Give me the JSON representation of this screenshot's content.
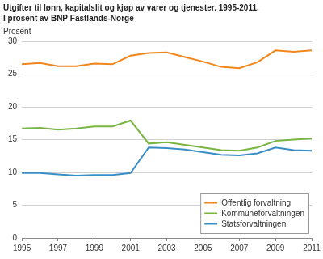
{
  "chart_data": {
    "type": "line",
    "title": "Utgifter til lønn, kapitalslit og kjøp av varer og tjenester. 1995-2011.",
    "subtitle": "I prosent av BNP Fastlands-Norge",
    "y_label": "Prosent",
    "x": [
      1995,
      1996,
      1997,
      1998,
      1999,
      2000,
      2001,
      2002,
      2003,
      2004,
      2005,
      2006,
      2007,
      2008,
      2009,
      2010,
      2011
    ],
    "series": [
      {
        "name": "Offentlig forvaltning",
        "color": "#f0861c",
        "values": [
          26.5,
          26.7,
          26.2,
          26.2,
          26.6,
          26.5,
          27.8,
          28.2,
          28.3,
          27.6,
          26.9,
          26.1,
          25.9,
          26.8,
          28.6,
          28.4,
          28.6
        ]
      },
      {
        "name": "Kommuneforvaltningen",
        "color": "#79b540",
        "values": [
          16.7,
          16.8,
          16.5,
          16.7,
          17.0,
          17.0,
          17.9,
          14.4,
          14.6,
          14.2,
          13.8,
          13.4,
          13.3,
          13.8,
          14.8,
          15.0,
          15.2
        ]
      },
      {
        "name": "Statsforvaltningen",
        "color": "#3a8ec6",
        "values": [
          9.9,
          9.9,
          9.7,
          9.5,
          9.6,
          9.6,
          9.9,
          13.8,
          13.7,
          13.5,
          13.1,
          12.7,
          12.6,
          12.9,
          13.8,
          13.4,
          13.3
        ]
      }
    ],
    "xlim": [
      1995,
      2011
    ],
    "xticks": [
      1995,
      1997,
      1999,
      2001,
      2003,
      2005,
      2007,
      2009,
      2011
    ],
    "ylim": [
      0,
      30
    ],
    "yticks": [
      0,
      5,
      10,
      15,
      20,
      25,
      30
    ],
    "grid": true,
    "legend": "lower right"
  }
}
